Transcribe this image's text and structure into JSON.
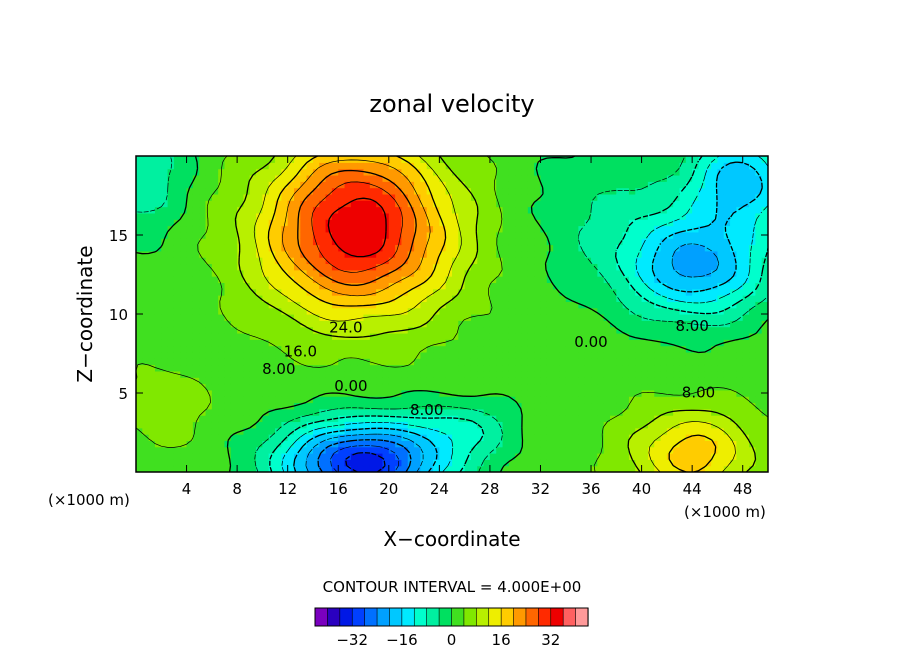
{
  "chart_data": {
    "type": "heatmap",
    "title": "zonal velocity",
    "xlabel": "X−coordinate",
    "ylabel": "Z−coordinate",
    "x_unit_label": "(×1000 m)",
    "y_unit_label": "(×1000 m)",
    "xlim": [
      0,
      50
    ],
    "ylim": [
      0,
      20
    ],
    "x_ticks": [
      4,
      8,
      12,
      16,
      20,
      24,
      28,
      32,
      36,
      40,
      44,
      48
    ],
    "y_ticks": [
      5,
      10,
      15
    ],
    "contour_interval_text": "CONTOUR INTERVAL = 4.000E+00",
    "contour_labels": [
      {
        "text": "24.0",
        "x": 16.6,
        "z": 9.1
      },
      {
        "text": "16.0",
        "x": 13.0,
        "z": 7.6
      },
      {
        "text": "8.00",
        "x": 11.3,
        "z": 6.5
      },
      {
        "text": "0.00",
        "x": 17.0,
        "z": 5.4
      },
      {
        "text": "8.00",
        "x": 23.0,
        "z": 3.9
      },
      {
        "text": "0.00",
        "x": 36.0,
        "z": 8.2
      },
      {
        "text": "8.00",
        "x": 44.0,
        "z": 9.2
      },
      {
        "text": "8.00",
        "x": 44.5,
        "z": 5.0
      }
    ],
    "features": [
      {
        "name": "upper jet maximum",
        "x": 17,
        "z": 14,
        "value": 32
      },
      {
        "name": "lower easterly minimum",
        "x": 17,
        "z": 1,
        "value": -32
      },
      {
        "name": "upper-right easterly minimum",
        "x": 44,
        "z": 13,
        "value": -20
      },
      {
        "name": "upper-right corner minimum",
        "x": 48,
        "z": 18,
        "value": -20
      },
      {
        "name": "lower-right westerly maximum",
        "x": 44,
        "z": 1.5,
        "value": 16
      }
    ],
    "colorbar": {
      "levels": [
        -40,
        -36,
        -32,
        -28,
        -24,
        -20,
        -16,
        -12,
        -8,
        -4,
        0,
        4,
        8,
        12,
        16,
        20,
        24,
        28,
        32,
        36,
        40
      ],
      "colors": [
        "#7a00bf",
        "#2a00bf",
        "#0018e6",
        "#0040ff",
        "#0070ff",
        "#00a0ff",
        "#00c8ff",
        "#00eaff",
        "#00ffcc",
        "#00f0a0",
        "#00e060",
        "#40e020",
        "#80e800",
        "#b8f000",
        "#eeee00",
        "#ffcc00",
        "#ff9900",
        "#ff6600",
        "#ff2a00",
        "#ee0000",
        "#ff6060",
        "#ff9a9a"
      ],
      "tick_labels": [
        "−32",
        "−16",
        "0",
        "16",
        "32"
      ],
      "tick_values": [
        -32,
        -16,
        0,
        16,
        32
      ]
    }
  }
}
